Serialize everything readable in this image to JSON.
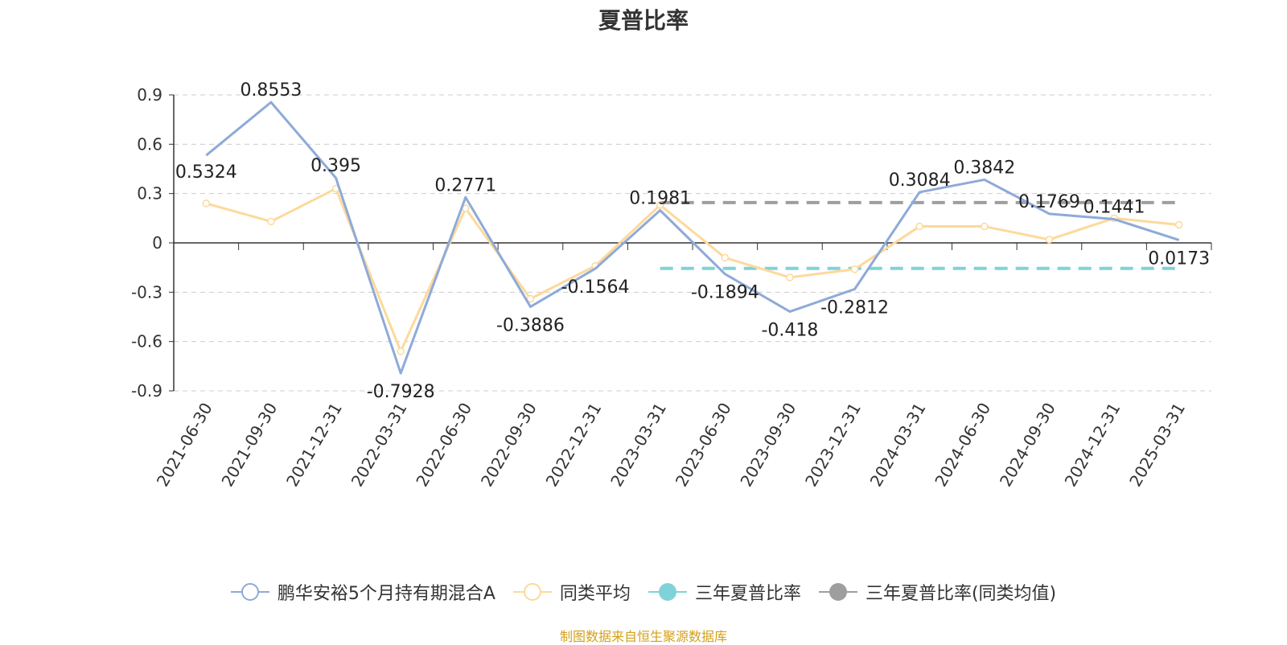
{
  "chart_data": {
    "type": "line",
    "title": "夏普比率",
    "categories": [
      "2021-06-30",
      "2021-09-30",
      "2021-12-31",
      "2022-03-31",
      "2022-06-30",
      "2022-09-30",
      "2022-12-31",
      "2023-03-31",
      "2023-06-30",
      "2023-09-30",
      "2023-12-31",
      "2024-03-31",
      "2024-06-30",
      "2024-09-30",
      "2024-12-31",
      "2025-03-31"
    ],
    "ylim": [
      -0.9,
      0.9
    ],
    "yticks": [
      "0.9",
      "0.6",
      "0.3",
      "0",
      "-0.3",
      "-0.6",
      "-0.9"
    ],
    "grid": "horizontal-dashed",
    "legend_position": "bottom",
    "series": [
      {
        "name": "鹏华安裕5个月持有期混合A",
        "color": "#8eaad8",
        "values": [
          0.5324,
          0.8553,
          0.395,
          -0.7928,
          0.2771,
          -0.3886,
          -0.1564,
          0.1981,
          -0.1894,
          -0.418,
          -0.2812,
          0.3084,
          0.3842,
          0.1769,
          0.1441,
          0.0173
        ],
        "labels": [
          "0.5324",
          "0.8553",
          "0.395",
          "-0.7928",
          "0.2771",
          "-0.3886",
          "-0.1564",
          "0.1981",
          "-0.1894",
          "-0.418",
          "-0.2812",
          "0.3084",
          "0.3842",
          "0.1769",
          "0.1441",
          "0.0173"
        ]
      },
      {
        "name": "同类平均",
        "color": "#fdd99b",
        "values": [
          0.24,
          0.13,
          0.33,
          -0.66,
          0.21,
          -0.34,
          -0.14,
          0.23,
          -0.09,
          -0.21,
          -0.16,
          0.1,
          0.1,
          0.02,
          0.15,
          0.11
        ]
      },
      {
        "name": "三年夏普比率",
        "color": "#7fd3d8",
        "from_index": 7,
        "to_index": 15,
        "value": -0.155
      },
      {
        "name": "三年夏普比率(同类均值)",
        "color": "#9e9e9e",
        "from_index": 7,
        "to_index": 15,
        "value": 0.245
      }
    ]
  },
  "legend": [
    {
      "label": "鹏华安裕5个月持有期混合A",
      "icon": "hollow-circle-line",
      "color": "#8eaad8"
    },
    {
      "label": "同类平均",
      "icon": "hollow-circle-line",
      "color": "#fdd99b"
    },
    {
      "label": "三年夏普比率",
      "icon": "filled-circle-line",
      "color": "#7fd3d8"
    },
    {
      "label": "三年夏普比率(同类均值)",
      "icon": "filled-circle-line",
      "color": "#9e9e9e"
    }
  ],
  "source_note": "制图数据来自恒生聚源数据库"
}
